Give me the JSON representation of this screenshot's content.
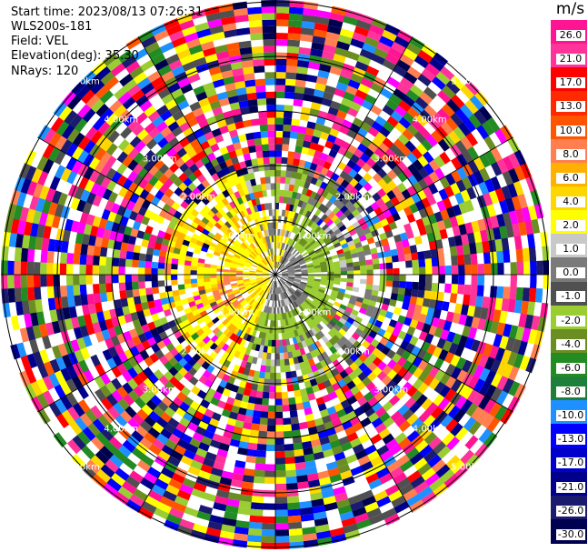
{
  "header": {
    "start_time": "Start time: 2023/08/13 07:26:31",
    "device": "WLS200s-181",
    "field": "Field: VEL",
    "elevation": "Elevation(deg): 35.30",
    "nrays": "NRays: 120"
  },
  "colorbar": {
    "unit": "m/s",
    "labels": [
      "26.0",
      "21.0",
      "17.0",
      "13.0",
      "10.0",
      "8.0",
      "6.0",
      "4.0",
      "2.0",
      "1.0",
      "0.0",
      "-1.0",
      "-2.0",
      "-4.0",
      "-6.0",
      "-8.0",
      "-10.0",
      "-13.0",
      "-17.0",
      "-21.0",
      "-26.0",
      "-30.0"
    ],
    "colors": [
      "#ff1493",
      "#ff3399",
      "#ff0000",
      "#ff2a00",
      "#ff5500",
      "#ff7f50",
      "#ffb000",
      "#ffd700",
      "#ffff00",
      "#c8c8c8",
      "#7a7a7a",
      "#505050",
      "#9acd32",
      "#6b8e23",
      "#228b22",
      "#1e7f3a",
      "#1e90ff",
      "#0000ff",
      "#0000cd",
      "#00008b",
      "#1a1a6e",
      "#000050"
    ]
  },
  "range_labels": [
    "1.00km",
    "2.00km",
    "3.00km",
    "4.00km",
    "5.00km"
  ]
}
